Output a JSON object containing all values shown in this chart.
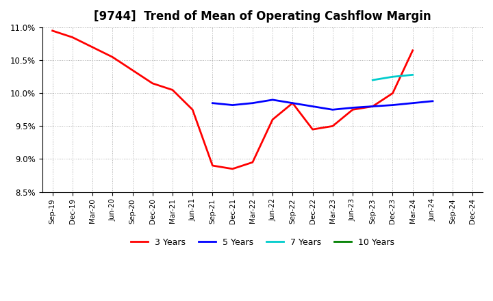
{
  "title": "[9744]  Trend of Mean of Operating Cashflow Margin",
  "ylim": [
    0.085,
    0.11
  ],
  "yticks": [
    0.085,
    0.09,
    0.095,
    0.1,
    0.105,
    0.11
  ],
  "ytick_labels": [
    "8.5%",
    "9.0%",
    "9.5%",
    "10.0%",
    "10.5%",
    "11.0%"
  ],
  "x_labels": [
    "Sep-19",
    "Dec-19",
    "Mar-20",
    "Jun-20",
    "Sep-20",
    "Dec-20",
    "Mar-21",
    "Jun-21",
    "Sep-21",
    "Dec-21",
    "Mar-22",
    "Jun-22",
    "Sep-22",
    "Dec-22",
    "Mar-23",
    "Jun-23",
    "Sep-23",
    "Dec-23",
    "Mar-24",
    "Jun-24",
    "Sep-24",
    "Dec-24"
  ],
  "series_3y": {
    "color": "#ff0000",
    "x": [
      0,
      1,
      2,
      3,
      4,
      5,
      6,
      7,
      8,
      9,
      10,
      11,
      12,
      13,
      14,
      15,
      16,
      17,
      18
    ],
    "y": [
      0.1095,
      0.1085,
      0.107,
      0.1055,
      0.1035,
      0.1015,
      0.1005,
      0.0975,
      0.089,
      0.0885,
      0.0895,
      0.096,
      0.0985,
      0.0945,
      0.095,
      0.0975,
      0.098,
      0.1,
      0.1065
    ]
  },
  "series_5y": {
    "color": "#0000ff",
    "x": [
      8,
      9,
      10,
      11,
      12,
      13,
      14,
      15,
      16,
      17,
      18,
      19
    ],
    "y": [
      0.0985,
      0.0982,
      0.0985,
      0.099,
      0.0985,
      0.098,
      0.0975,
      0.0978,
      0.098,
      0.0982,
      0.0985,
      0.0988
    ]
  },
  "series_7y": {
    "color": "#00cccc",
    "x": [
      16,
      17,
      18
    ],
    "y": [
      0.102,
      0.1025,
      0.1028
    ]
  },
  "series_10y": {
    "color": "#008000",
    "x": [],
    "y": []
  },
  "background_color": "#ffffff",
  "grid_color": "#aaaaaa",
  "legend_labels": [
    "3 Years",
    "5 Years",
    "7 Years",
    "10 Years"
  ],
  "legend_colors": [
    "#ff0000",
    "#0000ff",
    "#00cccc",
    "#008000"
  ]
}
